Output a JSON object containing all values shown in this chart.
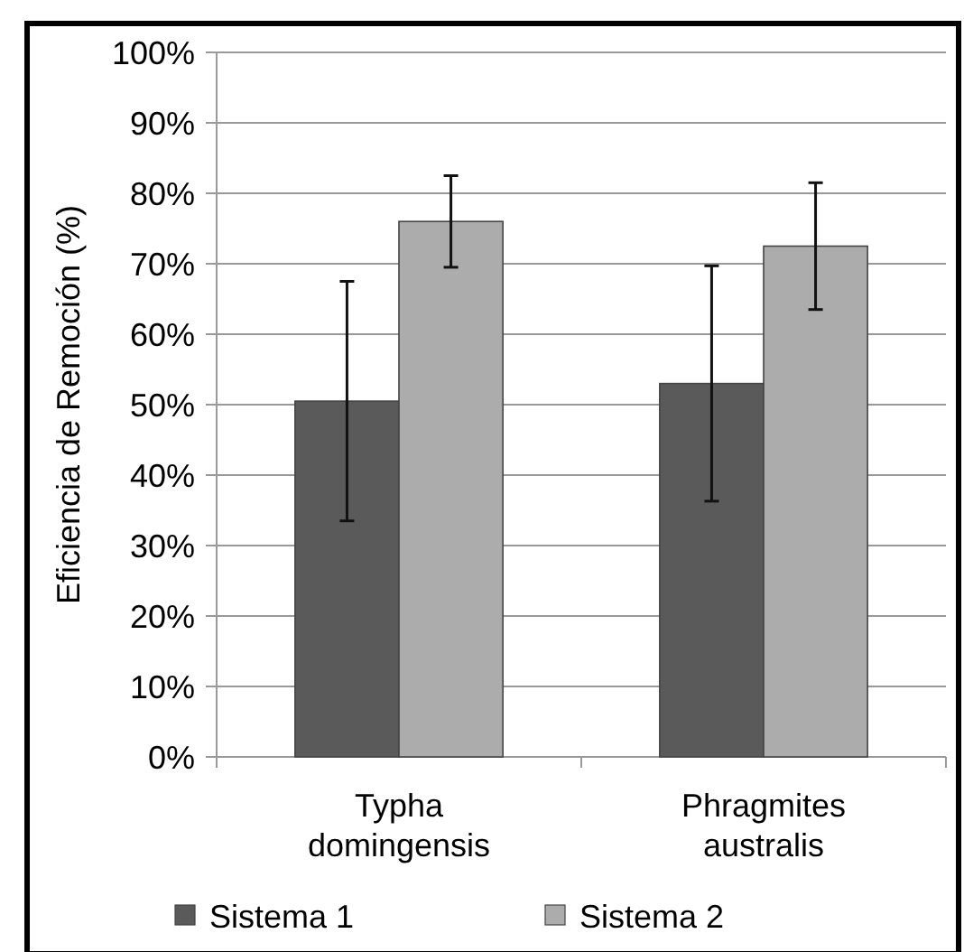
{
  "chart_data": {
    "type": "bar",
    "ylabel": "Eficiencia de Remoción (%)",
    "categories": [
      "Typha\ndomingensis",
      "Phragmites\naustralis"
    ],
    "series": [
      {
        "name": "Sistema 1",
        "color": "#5a5a5a",
        "values": [
          50.5,
          53
        ],
        "errors": [
          17,
          16.7
        ]
      },
      {
        "name": "Sistema 2",
        "color": "#acacac",
        "values": [
          76,
          72.5
        ],
        "errors": [
          6.5,
          9
        ]
      }
    ],
    "ylim": [
      0,
      100
    ],
    "yticks": [
      {
        "value": 0,
        "label": "0%"
      },
      {
        "value": 10,
        "label": "10%"
      },
      {
        "value": 20,
        "label": "20%"
      },
      {
        "value": 30,
        "label": "30%"
      },
      {
        "value": 40,
        "label": "40%"
      },
      {
        "value": 50,
        "label": "50%"
      },
      {
        "value": 60,
        "label": "60%"
      },
      {
        "value": 70,
        "label": "70%"
      },
      {
        "value": 80,
        "label": "80%"
      },
      {
        "value": 90,
        "label": "90%"
      },
      {
        "value": 100,
        "label": "100%"
      }
    ],
    "grid": "y",
    "legend": "bottom"
  }
}
